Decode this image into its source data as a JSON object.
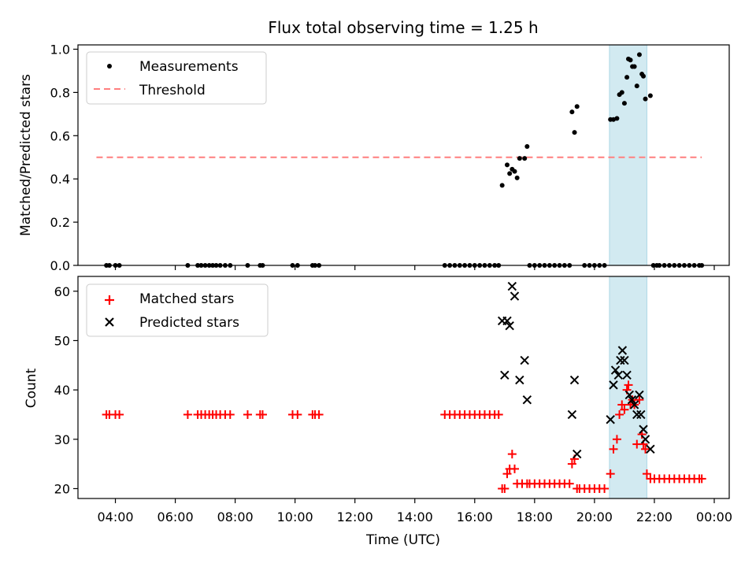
{
  "chart_data": [
    {
      "type": "scatter",
      "title": "Flux total observing time = 1.25 h",
      "xlabel": "",
      "ylabel": "Matched/Predicted stars",
      "ylim": [
        0,
        1.02
      ],
      "xlim": [
        "02:45",
        "00:30"
      ],
      "grid": false,
      "legend_position": "top-left",
      "highlight_span": [
        "20:30",
        "21:45"
      ],
      "colors": {
        "measurements": "#000000",
        "threshold": "#ff7f7f",
        "span": "#add8e6"
      },
      "yticks": [
        "0.0",
        "0.2",
        "0.4",
        "0.6",
        "0.8",
        "1.0"
      ],
      "series": [
        {
          "name": "Measurements",
          "points": [
            [
              "03:42",
              0
            ],
            [
              "03:48",
              0
            ],
            [
              "04:00",
              0
            ],
            [
              "04:08",
              0
            ],
            [
              "06:25",
              0
            ],
            [
              "06:45",
              0
            ],
            [
              "06:52",
              0
            ],
            [
              "07:00",
              0
            ],
            [
              "07:08",
              0
            ],
            [
              "07:15",
              0
            ],
            [
              "07:22",
              0
            ],
            [
              "07:30",
              0
            ],
            [
              "07:40",
              0
            ],
            [
              "07:50",
              0
            ],
            [
              "08:25",
              0
            ],
            [
              "08:50",
              0
            ],
            [
              "08:55",
              0
            ],
            [
              "09:55",
              0
            ],
            [
              "10:05",
              0
            ],
            [
              "10:35",
              0
            ],
            [
              "10:40",
              0
            ],
            [
              "10:48",
              0
            ],
            [
              "15:00",
              0
            ],
            [
              "15:10",
              0
            ],
            [
              "15:20",
              0
            ],
            [
              "15:30",
              0
            ],
            [
              "15:40",
              0
            ],
            [
              "15:50",
              0
            ],
            [
              "16:00",
              0
            ],
            [
              "16:10",
              0
            ],
            [
              "16:20",
              0
            ],
            [
              "16:30",
              0
            ],
            [
              "16:40",
              0
            ],
            [
              "16:48",
              0
            ],
            [
              "16:55",
              0.37
            ],
            [
              "17:05",
              0.465
            ],
            [
              "17:10",
              0.425
            ],
            [
              "17:15",
              0.445
            ],
            [
              "17:20",
              0.435
            ],
            [
              "17:25",
              0.405
            ],
            [
              "17:30",
              0.495
            ],
            [
              "17:40",
              0.495
            ],
            [
              "17:45",
              0.55
            ],
            [
              "17:50",
              0
            ],
            [
              "18:00",
              0
            ],
            [
              "18:10",
              0
            ],
            [
              "18:20",
              0
            ],
            [
              "18:30",
              0
            ],
            [
              "18:40",
              0
            ],
            [
              "18:50",
              0
            ],
            [
              "19:00",
              0
            ],
            [
              "19:10",
              0
            ],
            [
              "19:15",
              0.71
            ],
            [
              "19:20",
              0.615
            ],
            [
              "19:25",
              0.735
            ],
            [
              "19:40",
              0
            ],
            [
              "19:50",
              0
            ],
            [
              "20:00",
              0
            ],
            [
              "20:10",
              0
            ],
            [
              "20:20",
              0
            ],
            [
              "20:32",
              0.675
            ],
            [
              "20:38",
              0.675
            ],
            [
              "20:45",
              0.68
            ],
            [
              "20:50",
              0.79
            ],
            [
              "20:55",
              0.8
            ],
            [
              "21:00",
              0.75
            ],
            [
              "21:05",
              0.87
            ],
            [
              "21:08",
              0.955
            ],
            [
              "21:12",
              0.95
            ],
            [
              "21:16",
              0.92
            ],
            [
              "21:20",
              0.92
            ],
            [
              "21:25",
              0.83
            ],
            [
              "21:30",
              0.975
            ],
            [
              "21:35",
              0.885
            ],
            [
              "21:38",
              0.875
            ],
            [
              "21:42",
              0.77
            ],
            [
              "21:52",
              0.785
            ],
            [
              "21:58",
              0
            ],
            [
              "22:05",
              0
            ],
            [
              "22:10",
              0
            ],
            [
              "22:20",
              0
            ],
            [
              "22:30",
              0
            ],
            [
              "22:40",
              0
            ],
            [
              "22:50",
              0
            ],
            [
              "23:00",
              0
            ],
            [
              "23:10",
              0
            ],
            [
              "23:20",
              0
            ],
            [
              "23:30",
              0
            ],
            [
              "23:35",
              0
            ]
          ]
        },
        {
          "name": "Threshold",
          "line": [
            [
              "03:22",
              0.5
            ],
            [
              "23:35",
              0.5
            ]
          ]
        }
      ]
    },
    {
      "type": "scatter",
      "title": "",
      "xlabel": "Time (UTC)",
      "ylabel": "Count",
      "ylim": [
        18,
        63
      ],
      "xlim": [
        "02:45",
        "00:30"
      ],
      "grid": false,
      "legend_position": "top-left",
      "highlight_span": [
        "20:30",
        "21:45"
      ],
      "colors": {
        "matched": "#ff0000",
        "predicted": "#000000",
        "span": "#add8e6"
      },
      "yticks": [
        "20",
        "30",
        "40",
        "50",
        "60"
      ],
      "xticks": [
        "04:00",
        "06:00",
        "08:00",
        "10:00",
        "12:00",
        "14:00",
        "16:00",
        "18:00",
        "20:00",
        "22:00",
        "00:00"
      ],
      "series": [
        {
          "name": "Matched stars",
          "points": [
            [
              "03:42",
              35
            ],
            [
              "03:48",
              35
            ],
            [
              "04:00",
              35
            ],
            [
              "04:08",
              35
            ],
            [
              "06:25",
              35
            ],
            [
              "06:45",
              35
            ],
            [
              "06:52",
              35
            ],
            [
              "07:00",
              35
            ],
            [
              "07:08",
              35
            ],
            [
              "07:15",
              35
            ],
            [
              "07:22",
              35
            ],
            [
              "07:30",
              35
            ],
            [
              "07:40",
              35
            ],
            [
              "07:50",
              35
            ],
            [
              "08:25",
              35
            ],
            [
              "08:50",
              35
            ],
            [
              "08:55",
              35
            ],
            [
              "09:55",
              35
            ],
            [
              "10:05",
              35
            ],
            [
              "10:35",
              35
            ],
            [
              "10:40",
              35
            ],
            [
              "10:48",
              35
            ],
            [
              "15:00",
              35
            ],
            [
              "15:10",
              35
            ],
            [
              "15:20",
              35
            ],
            [
              "15:30",
              35
            ],
            [
              "15:40",
              35
            ],
            [
              "15:50",
              35
            ],
            [
              "16:00",
              35
            ],
            [
              "16:10",
              35
            ],
            [
              "16:20",
              35
            ],
            [
              "16:30",
              35
            ],
            [
              "16:40",
              35
            ],
            [
              "16:48",
              35
            ],
            [
              "16:55",
              20
            ],
            [
              "17:00",
              20
            ],
            [
              "17:05",
              23
            ],
            [
              "17:10",
              24
            ],
            [
              "17:15",
              27
            ],
            [
              "17:20",
              24
            ],
            [
              "17:25",
              21
            ],
            [
              "17:35",
              21
            ],
            [
              "17:45",
              21
            ],
            [
              "17:50",
              21
            ],
            [
              "18:00",
              21
            ],
            [
              "18:10",
              21
            ],
            [
              "18:20",
              21
            ],
            [
              "18:30",
              21
            ],
            [
              "18:40",
              21
            ],
            [
              "18:50",
              21
            ],
            [
              "19:00",
              21
            ],
            [
              "19:10",
              21
            ],
            [
              "19:15",
              25
            ],
            [
              "19:20",
              26
            ],
            [
              "19:25",
              20
            ],
            [
              "19:30",
              20
            ],
            [
              "19:40",
              20
            ],
            [
              "19:50",
              20
            ],
            [
              "20:00",
              20
            ],
            [
              "20:10",
              20
            ],
            [
              "20:20",
              20
            ],
            [
              "20:32",
              23
            ],
            [
              "20:38",
              28
            ],
            [
              "20:45",
              30
            ],
            [
              "20:50",
              35
            ],
            [
              "20:55",
              37
            ],
            [
              "21:00",
              36
            ],
            [
              "21:05",
              40
            ],
            [
              "21:08",
              41
            ],
            [
              "21:12",
              37
            ],
            [
              "21:16",
              38
            ],
            [
              "21:20",
              37
            ],
            [
              "21:25",
              29
            ],
            [
              "21:30",
              38
            ],
            [
              "21:35",
              31
            ],
            [
              "21:38",
              29
            ],
            [
              "21:42",
              28
            ],
            [
              "21:45",
              23
            ],
            [
              "21:52",
              22
            ],
            [
              "22:00",
              22
            ],
            [
              "22:10",
              22
            ],
            [
              "22:20",
              22
            ],
            [
              "22:30",
              22
            ],
            [
              "22:40",
              22
            ],
            [
              "22:50",
              22
            ],
            [
              "23:00",
              22
            ],
            [
              "23:10",
              22
            ],
            [
              "23:20",
              22
            ],
            [
              "23:30",
              22
            ],
            [
              "23:35",
              22
            ]
          ]
        },
        {
          "name": "Predicted stars",
          "points": [
            [
              "16:55",
              54
            ],
            [
              "17:00",
              43
            ],
            [
              "17:05",
              54
            ],
            [
              "17:10",
              53
            ],
            [
              "17:15",
              61
            ],
            [
              "17:20",
              59
            ],
            [
              "17:30",
              42
            ],
            [
              "17:40",
              46
            ],
            [
              "17:45",
              38
            ],
            [
              "19:15",
              35
            ],
            [
              "19:20",
              42
            ],
            [
              "19:25",
              27
            ],
            [
              "20:32",
              34
            ],
            [
              "20:38",
              41
            ],
            [
              "20:42",
              44
            ],
            [
              "20:48",
              43
            ],
            [
              "20:52",
              46
            ],
            [
              "20:56",
              48
            ],
            [
              "21:00",
              46
            ],
            [
              "21:05",
              43
            ],
            [
              "21:10",
              39
            ],
            [
              "21:15",
              38
            ],
            [
              "21:20",
              37
            ],
            [
              "21:25",
              35
            ],
            [
              "21:30",
              39
            ],
            [
              "21:33",
              35
            ],
            [
              "21:38",
              32
            ],
            [
              "21:42",
              30
            ],
            [
              "21:52",
              28
            ]
          ]
        }
      ]
    }
  ]
}
